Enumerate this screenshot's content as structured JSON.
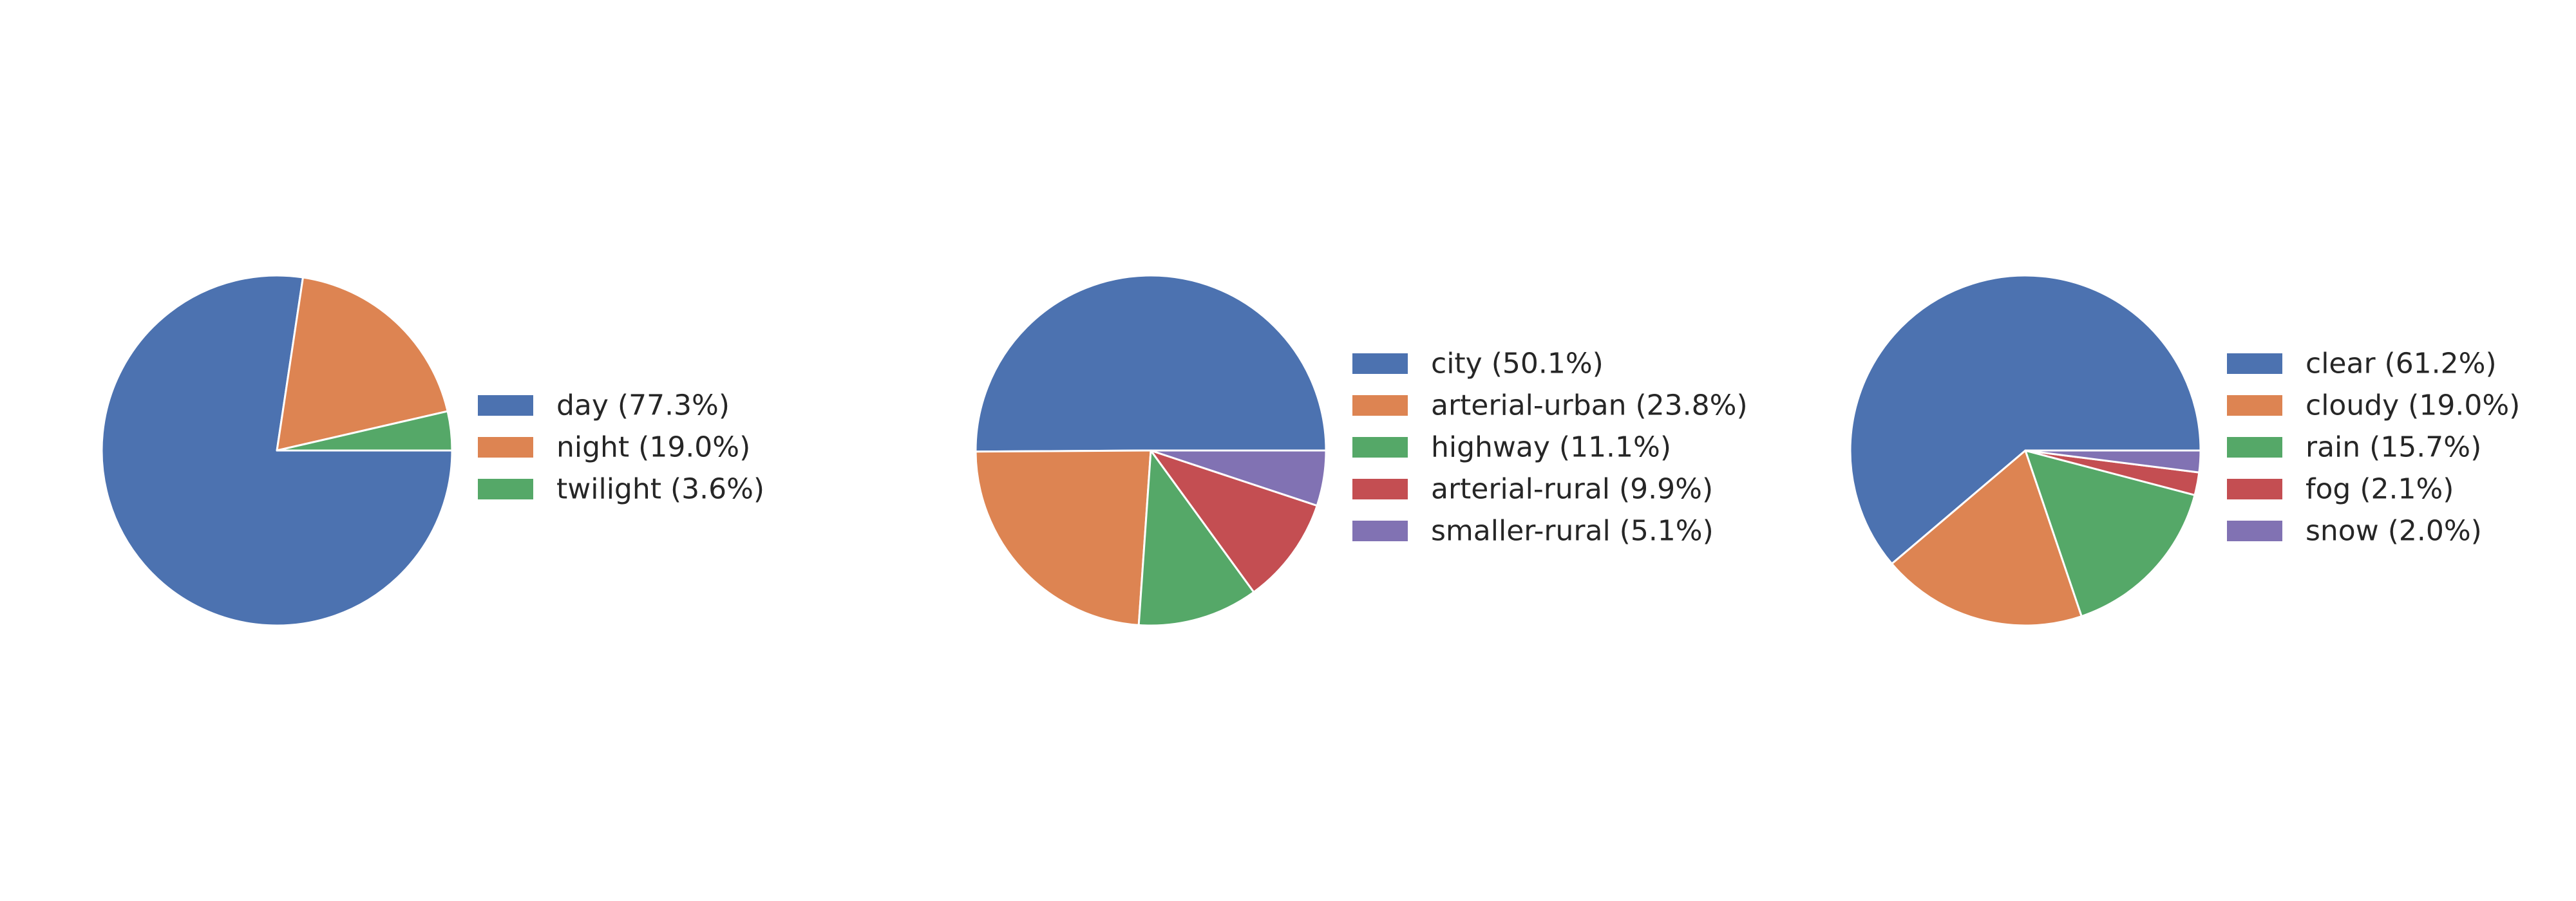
{
  "chart_data": [
    {
      "type": "pie",
      "title": "",
      "labels": [
        "day (77.3%)",
        "night (19.0%)",
        "twilight (3.6%)"
      ],
      "values": [
        77.3,
        19.0,
        3.6
      ],
      "colors": [
        "#4C72B0",
        "#DD8452",
        "#55A868"
      ],
      "start_angle_deg": 0,
      "direction": "clockwise",
      "legend_position": "right"
    },
    {
      "type": "pie",
      "title": "",
      "labels": [
        "city (50.1%)",
        "arterial-urban (23.8%)",
        "highway (11.1%)",
        "arterial-rural (9.9%)",
        "smaller-rural (5.1%)"
      ],
      "values": [
        50.1,
        23.8,
        11.1,
        9.9,
        5.1
      ],
      "colors": [
        "#4C72B0",
        "#DD8452",
        "#55A868",
        "#C44E52",
        "#8172B3"
      ],
      "start_angle_deg": 0,
      "direction": "counterclockwise",
      "legend_position": "right"
    },
    {
      "type": "pie",
      "title": "",
      "labels": [
        "clear (61.2%)",
        "cloudy (19.0%)",
        "rain (15.7%)",
        "fog (2.1%)",
        "snow (2.0%)"
      ],
      "values": [
        61.2,
        19.0,
        15.7,
        2.1,
        2.0
      ],
      "colors": [
        "#4C72B0",
        "#DD8452",
        "#55A868",
        "#C44E52",
        "#8172B3"
      ],
      "start_angle_deg": 0,
      "direction": "counterclockwise",
      "legend_position": "right"
    }
  ]
}
